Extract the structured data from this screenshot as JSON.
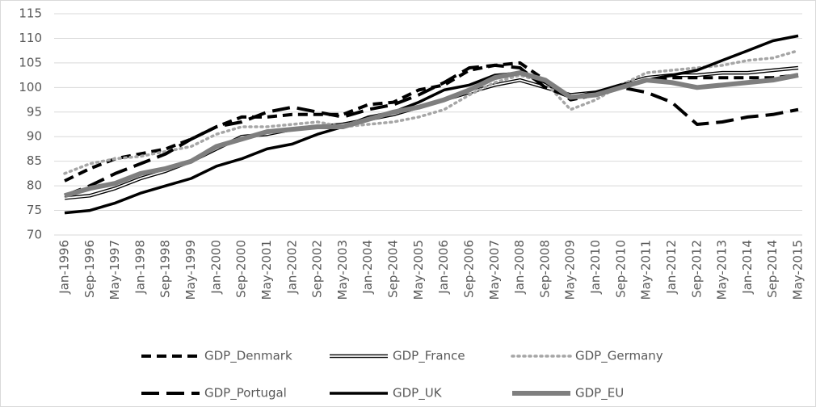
{
  "chart_data": {
    "type": "line",
    "categories": [
      "Jan-1996",
      "Sep-1996",
      "May-1997",
      "Jan-1998",
      "Sep-1998",
      "May-1999",
      "Jan-2000",
      "Sep-2000",
      "May-2001",
      "Jan-2002",
      "Sep-2002",
      "May-2003",
      "Jan-2004",
      "Sep-2004",
      "May-2005",
      "Jan-2006",
      "Sep-2006",
      "May-2007",
      "Jan-2008",
      "Sep-2008",
      "May-2009",
      "Jan-2010",
      "Sep-2010",
      "May-2011",
      "Jan-2012",
      "Sep-2012",
      "May-2013",
      "Jan-2014",
      "Sep-2014",
      "May-2015"
    ],
    "series": [
      {
        "name": "GDP_Denmark",
        "color": "#000000",
        "linestyle": "dashed",
        "values": [
          81,
          83.5,
          85.5,
          86.5,
          87.5,
          89.5,
          92,
          94,
          94,
          94.5,
          94.5,
          94.5,
          96.5,
          97,
          99.5,
          100.5,
          103.5,
          104.5,
          105,
          101.5,
          97.5,
          98.5,
          100,
          101.5,
          102,
          102,
          102,
          102,
          102,
          102.5
        ]
      },
      {
        "name": "GDP_France",
        "color": "#000000",
        "linestyle": "double",
        "values": [
          77.5,
          78,
          79.5,
          81.5,
          83,
          85,
          87.5,
          90,
          90.5,
          91.5,
          92,
          92.5,
          93.5,
          94.5,
          96,
          97.5,
          99,
          100.5,
          101.5,
          100,
          98.5,
          99,
          100.5,
          102,
          102.5,
          102.5,
          103,
          103,
          103.5,
          104
        ]
      },
      {
        "name": "GDP_Germany",
        "color": "#a6a6a6",
        "linestyle": "dotted",
        "values": [
          82.5,
          84.5,
          85.5,
          86,
          87,
          88,
          90.5,
          92,
          92,
          92.5,
          93,
          92,
          92.5,
          93,
          94,
          95.5,
          98.5,
          101,
          102.5,
          101,
          95.5,
          97.5,
          100.5,
          103,
          103.5,
          104,
          104.5,
          105.5,
          106,
          107.5
        ]
      },
      {
        "name": "GDP_Portugal",
        "color": "#000000",
        "linestyle": "longdash",
        "values": [
          78,
          80,
          82.5,
          84.5,
          86.5,
          89.5,
          92,
          93,
          95,
          96,
          95,
          94,
          95.5,
          96.5,
          98.5,
          101,
          104,
          104.5,
          104,
          100,
          98,
          98.5,
          100,
          99,
          97,
          92.5,
          93,
          94,
          94.5,
          95.5
        ]
      },
      {
        "name": "GDP_UK",
        "color": "#000000",
        "linestyle": "solid",
        "values": [
          74.5,
          75,
          76.5,
          78.5,
          80,
          81.5,
          84,
          85.5,
          87.5,
          88.5,
          90.5,
          92,
          94,
          95,
          97,
          99.5,
          100.5,
          102.5,
          103,
          101,
          98,
          99,
          100.5,
          101.5,
          102.5,
          103.5,
          105.5,
          107.5,
          109.5,
          110.5
        ]
      },
      {
        "name": "GDP_EU",
        "color": "#7f7f7f",
        "linestyle": "thick",
        "values": [
          78,
          79.5,
          80.5,
          82.5,
          83.5,
          85,
          88,
          89.5,
          91,
          91.5,
          92,
          92,
          93.5,
          95,
          96,
          97.5,
          99.5,
          102,
          103,
          101.5,
          98,
          98.5,
          100,
          101.5,
          101,
          100,
          100.5,
          101,
          101.5,
          102.5
        ]
      }
    ],
    "ylim": [
      70,
      115
    ],
    "yticks": [
      70,
      75,
      80,
      85,
      90,
      95,
      100,
      105,
      110,
      115
    ],
    "grid": true,
    "legend": "bottom"
  }
}
